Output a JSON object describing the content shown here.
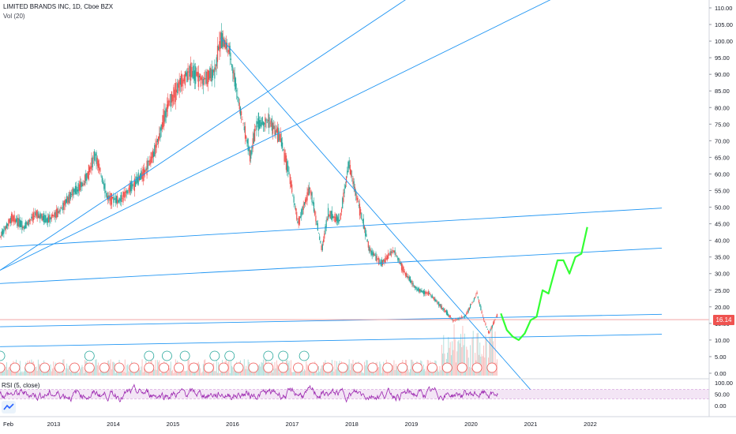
{
  "header": {
    "title": "LIMITED BRANDS INC, 1D, Cboe BZX",
    "volume_label": "Vol (20)"
  },
  "rsi_label": "RSI (5, close)",
  "last_price_label": "16.14",
  "colors": {
    "up": "#26a69a",
    "down": "#ef5350",
    "trendline": "#2196f3",
    "projection": "#33ff33",
    "rsi": "#9c27b0",
    "rsi_band": "#f3e5f5",
    "price_line": "#ef9a9a",
    "earnings_badge": "#ef5350",
    "dividend_badge": "#26a69a"
  },
  "icons": [
    "tradingview-logo-icon"
  ],
  "chart_data": [
    {
      "type": "line",
      "title": "LIMITED BRANDS INC, 1D, Cboe BZX",
      "y_axis_ticks": [
        "110.00",
        "105.00",
        "100.00",
        "95.00",
        "90.00",
        "85.00",
        "80.00",
        "75.00",
        "70.00",
        "65.00",
        "60.00",
        "55.00",
        "50.00",
        "45.00",
        "40.00",
        "35.00",
        "30.00",
        "25.00",
        "20.00",
        "15.00",
        "10.00",
        "5.00",
        "0.00"
      ],
      "ylim": [
        0,
        112
      ],
      "x_axis_ticks": [
        "Feb",
        "2013",
        "2014",
        "2015",
        "2016",
        "2017",
        "2018",
        "2019",
        "2020",
        "2021",
        "2022"
      ],
      "x_tick_years": [
        2012.1,
        2013,
        2014,
        2015,
        2016,
        2017,
        2018,
        2019,
        2020,
        2021,
        2022
      ],
      "series": [
        {
          "x": [
            2012.1,
            2012.3,
            2012.5,
            2012.7,
            2012.9,
            2013.1,
            2013.3,
            2013.5,
            2013.7,
            2013.9,
            2014.1,
            2014.3,
            2014.5,
            2014.7,
            2014.9,
            2015.1,
            2015.3,
            2015.5,
            2015.7,
            2015.8,
            2015.95,
            2016.1,
            2016.3,
            2016.4,
            2016.6,
            2016.8,
            2016.95,
            2017.1,
            2017.3,
            2017.5,
            2017.6,
            2017.8,
            2017.95,
            2018.1,
            2018.3,
            2018.5,
            2018.7,
            2018.9,
            2019.1,
            2019.3,
            2019.5,
            2019.7,
            2019.9,
            2020.1,
            2020.2,
            2020.3,
            2020.45
          ],
          "values": [
            41,
            47,
            44,
            48,
            46,
            49,
            54,
            57,
            66,
            53,
            52,
            56,
            60,
            67,
            80,
            87,
            91,
            88,
            91,
            101,
            97,
            82,
            65,
            75,
            76,
            71,
            60,
            45,
            56,
            37,
            48,
            46,
            63,
            52,
            37,
            33,
            37,
            30,
            25,
            24,
            20,
            16,
            17,
            24,
            17,
            12,
            18
          ]
        }
      ],
      "projection": {
        "x": [
          2020.5,
          2020.6,
          2020.7,
          2020.8,
          2020.9,
          2021.0,
          2021.1,
          2021.2,
          2021.3,
          2021.45,
          2021.55,
          2021.65,
          2021.75,
          2021.85,
          2021.95
        ],
        "values": [
          18,
          13,
          11,
          10,
          12,
          16,
          17,
          25,
          24,
          34,
          34,
          30,
          35,
          36,
          44
        ]
      },
      "last_price": 16.14
    },
    {
      "type": "line",
      "title": "RSI (5, close)",
      "y_axis_ticks": [
        "100.00",
        "50.00",
        "0.00"
      ],
      "ylim": [
        0,
        100
      ],
      "band": [
        30,
        70
      ]
    }
  ]
}
